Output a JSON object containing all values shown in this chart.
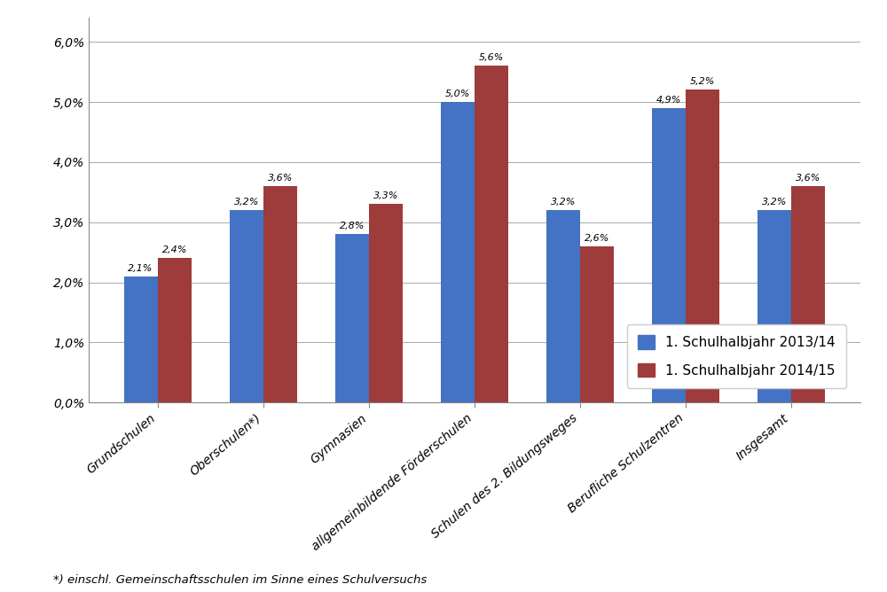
{
  "categories": [
    "Grundschulen",
    "Oberschulen*)",
    "Gymnasien",
    "allgemeinbildende Förderschulen",
    "Schulen des 2. Bildungsweges",
    "Berufliche Schulzentren",
    "Insgesamt"
  ],
  "series_2013": [
    2.1,
    3.2,
    2.8,
    5.0,
    3.2,
    4.9,
    3.2
  ],
  "series_2014": [
    2.4,
    3.6,
    3.3,
    5.6,
    2.6,
    5.2,
    3.6
  ],
  "color_2013": "#4472C4",
  "color_2014": "#9E3B3B",
  "label_2013": "1. Schulhalbjahr 2013/14",
  "label_2014": "1. Schulhalbjahr 2014/15",
  "ylim": [
    0.0,
    6.4
  ],
  "yticks": [
    0.0,
    1.0,
    2.0,
    3.0,
    4.0,
    5.0,
    6.0
  ],
  "ytick_labels": [
    "0,0%",
    "1,0%",
    "2,0%",
    "3,0%",
    "4,0%",
    "5,0%",
    "6,0%"
  ],
  "footnote": "*) einschl. Gemeinschaftsschulen im Sinne eines Schulversuchs",
  "background_color": "#FFFFFF",
  "grid_color": "#AAAAAA",
  "bar_width": 0.32,
  "label_fontsize": 8.0,
  "tick_fontsize": 10.0,
  "legend_fontsize": 11,
  "footnote_fontsize": 9.5
}
